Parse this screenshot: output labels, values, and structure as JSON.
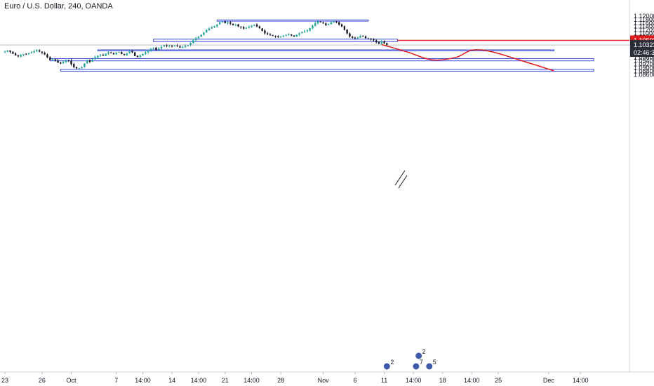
{
  "chart_data": {
    "type": "candlestick",
    "title": "Euro / U.S. Dollar, 240, OANDA",
    "ylim": [
      1.085,
      1.1215
    ],
    "y_ticks": [
      "1.12000",
      "1.11800",
      "1.11600",
      "1.11400",
      "1.11200",
      "1.11000",
      "1.10800",
      "1.10600",
      "1.10400",
      "1.10200",
      "1.10000",
      "1.09800",
      "1.09600",
      "1.09400",
      "1.09200",
      "1.09000",
      "1.08800",
      "1.08600"
    ],
    "y_tick_values": [
      1.12,
      1.118,
      1.116,
      1.114,
      1.112,
      1.11,
      1.108,
      1.106,
      1.104,
      1.102,
      1.1,
      1.098,
      1.096,
      1.094,
      1.092,
      1.09,
      1.088,
      1.086
    ],
    "x_ticks": [
      "23",
      "26",
      "Oct",
      "7",
      "14:00",
      "14",
      "14:00",
      "21",
      "14:00",
      "28",
      "Nov",
      "6",
      "11",
      "14:00",
      "18",
      "14:00",
      "25",
      "Dec",
      "14:00"
    ],
    "x_tick_index": [
      0,
      14,
      25,
      42,
      52,
      63,
      73,
      83,
      93,
      104,
      120,
      132,
      143,
      154,
      165,
      176,
      186,
      205,
      217
    ],
    "price_labels": {
      "level": "1.10593",
      "level_value": 1.10593,
      "current": "1.10323",
      "current_value": 1.10323,
      "countdown": "02:46:36"
    },
    "zones": [
      {
        "i0": 80,
        "i1": 137,
        "top": 1.1178,
        "bottom": 1.1171
      },
      {
        "i0": 56,
        "i1": 148,
        "top": 1.1066,
        "bottom": 1.1052
      },
      {
        "i0": 35,
        "i1": 207,
        "top": 1.1004,
        "bottom": 1.0998
      },
      {
        "i0": 17,
        "i1": 222,
        "top": 1.0953,
        "bottom": 1.094
      },
      {
        "i0": 21,
        "i1": 222,
        "top": 1.0891,
        "bottom": 1.088
      }
    ],
    "projection": [
      {
        "i": 142,
        "v": 1.1035
      },
      {
        "i": 152,
        "v": 1.099
      },
      {
        "i": 161,
        "v": 1.0946
      },
      {
        "i": 170,
        "v": 1.096
      },
      {
        "i": 176,
        "v": 1.1002
      },
      {
        "i": 183,
        "v": 1.0995
      },
      {
        "i": 193,
        "v": 1.095
      },
      {
        "i": 207,
        "v": 1.0882
      }
    ],
    "colors": {
      "up": "#26a69a",
      "down": "#131722",
      "zone": "#3f4fdc",
      "projection": "#e01a1a",
      "level_line": "#e01a1a",
      "current_label": "#2a2e39"
    },
    "close_path": [
      1.0995,
      1.1,
      1.0992,
      1.0982,
      1.0972,
      1.0966,
      1.0975,
      1.098,
      1.0978,
      1.0985,
      1.099,
      1.0996,
      1.1002,
      1.0994,
      1.0987,
      1.0978,
      1.096,
      1.0945,
      1.095,
      1.0942,
      1.093,
      1.0925,
      1.0935,
      1.0945,
      1.094,
      1.092,
      1.0904,
      1.0896,
      1.0897,
      1.0902,
      1.0925,
      1.0942,
      1.0935,
      1.0948,
      1.0962,
      1.097,
      1.0975,
      1.097,
      1.0982,
      1.099,
      1.0985,
      1.0978,
      1.0988,
      1.0992,
      1.098,
      1.0975,
      1.0985,
      1.0995,
      1.099,
      1.0968,
      1.0962,
      1.0972,
      1.098,
      1.099,
      1.1,
      1.101,
      1.1015,
      1.1005,
      1.1012,
      1.1022,
      1.103,
      1.1026,
      1.1028,
      1.1025,
      1.103,
      1.1026,
      1.1018,
      1.1022,
      1.1028,
      1.103,
      1.1045,
      1.106,
      1.1072,
      1.108,
      1.1092,
      1.1105,
      1.112,
      1.1128,
      1.1135,
      1.1142,
      1.1152,
      1.1165,
      1.1168,
      1.116,
      1.1163,
      1.1156,
      1.1148,
      1.115,
      1.114,
      1.1135,
      1.1128,
      1.1132,
      1.1138,
      1.1145,
      1.115,
      1.114,
      1.113,
      1.1115,
      1.11,
      1.1095,
      1.109,
      1.1085,
      1.1082,
      1.1078,
      1.108,
      1.1086,
      1.109,
      1.1095,
      1.1088,
      1.1083,
      1.1092,
      1.11,
      1.1108,
      1.1112,
      1.1118,
      1.113,
      1.1145,
      1.116,
      1.117,
      1.1165,
      1.1158,
      1.1148,
      1.1155,
      1.1165,
      1.117,
      1.1163,
      1.115,
      1.114,
      1.112,
      1.11,
      1.1082,
      1.1075,
      1.107,
      1.1075,
      1.1085,
      1.1082,
      1.1072,
      1.107,
      1.1065,
      1.106,
      1.1048,
      1.104,
      1.1052,
      1.1042,
      1.1032
    ]
  },
  "event_markers": [
    {
      "i": 144,
      "label": "2"
    },
    {
      "i": 155,
      "label": "7"
    },
    {
      "i": 160,
      "label": "5"
    },
    {
      "i": 156,
      "label": "2"
    }
  ]
}
